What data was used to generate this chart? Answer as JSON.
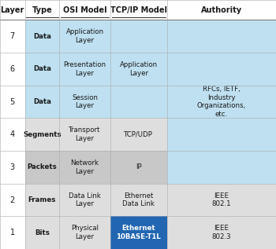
{
  "title_row": [
    "Layer",
    "Type",
    "OSI Model",
    "TCP/IP Model",
    "Authority"
  ],
  "rows": [
    {
      "layer": "7",
      "type": "Data",
      "osi": "Application\nLayer"
    },
    {
      "layer": "6",
      "type": "Data",
      "osi": "Presentation\nLayer"
    },
    {
      "layer": "5",
      "type": "Data",
      "osi": "Session\nLayer"
    },
    {
      "layer": "4",
      "type": "Segments",
      "osi": "Transport\nLayer"
    },
    {
      "layer": "3",
      "type": "Packets",
      "osi": "Network\nLayer"
    },
    {
      "layer": "2",
      "type": "Frames",
      "osi": "Data Link\nLayer"
    },
    {
      "layer": "1",
      "type": "Bits",
      "osi": "Physical\nLayer"
    }
  ],
  "color_blue_light": "#BEE0F0",
  "color_grey_light": "#DEDEDE",
  "color_grey_medium": "#C8C8C8",
  "color_blue_dark": "#2266B2",
  "color_white": "#FFFFFF",
  "color_bg": "#FFFFFF",
  "header_text_color": "#1A1A1A",
  "body_text_color": "#1A1A1A",
  "highlight_text_color": "#FFFFFF",
  "font_size_header": 7.0,
  "font_size_body": 6.2,
  "font_size_layer": 7.0
}
